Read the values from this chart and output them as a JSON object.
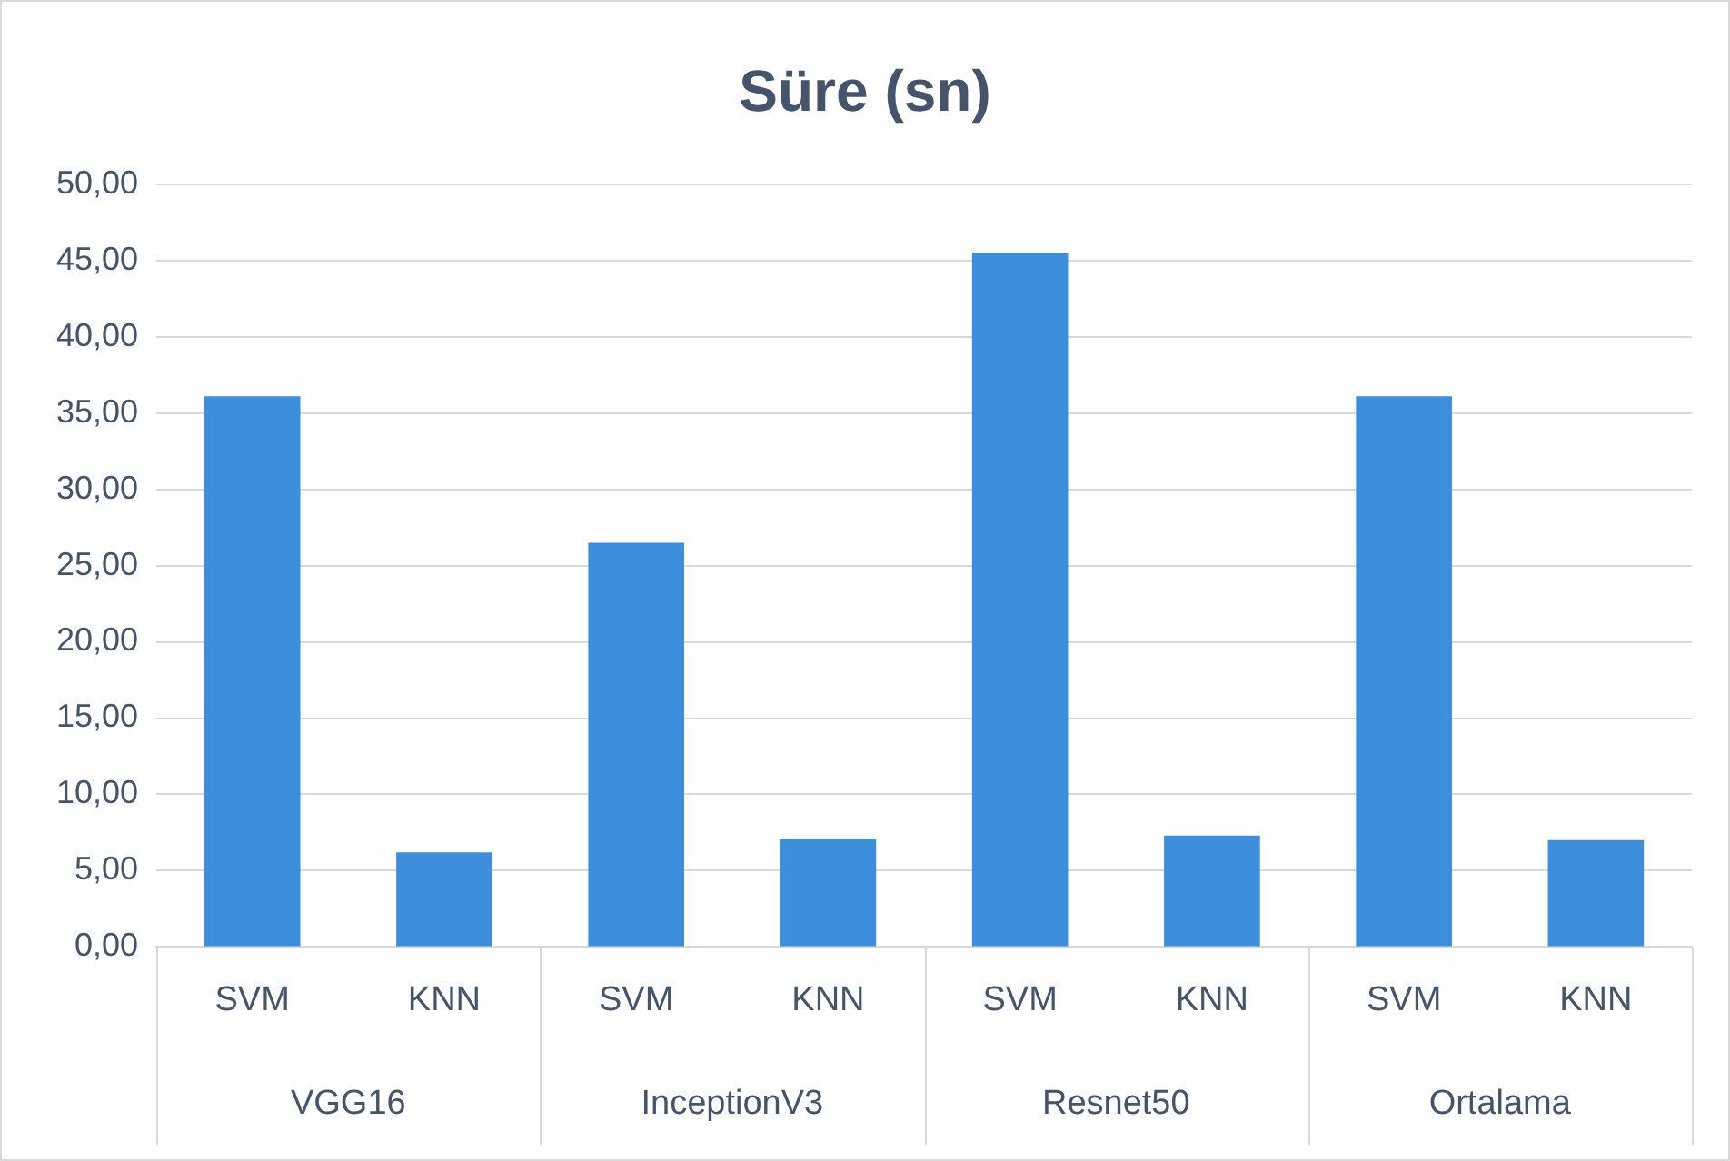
{
  "chart_data": {
    "type": "bar",
    "title": "Süre (sn)",
    "categories": [
      "SVM",
      "KNN",
      "SVM",
      "KNN",
      "SVM",
      "KNN",
      "SVM",
      "KNN"
    ],
    "values": [
      36.1,
      6.2,
      26.5,
      7.1,
      45.5,
      7.3,
      36.1,
      7.0
    ],
    "color": "#3d8fdd",
    "annotations": [
      "VGG16",
      "InceptionV3",
      "Resnet50",
      "Ortalama"
    ],
    "ylim": [
      0,
      50
    ],
    "yticks": [
      {
        "value": 0,
        "label": "0,00"
      },
      {
        "value": 5,
        "label": "5,00"
      },
      {
        "value": 10,
        "label": "10,00"
      },
      {
        "value": 15,
        "label": "15,00"
      },
      {
        "value": 20,
        "label": "20,00"
      },
      {
        "value": 25,
        "label": "25,00"
      },
      {
        "value": 30,
        "label": "30,00"
      },
      {
        "value": 35,
        "label": "35,00"
      },
      {
        "value": 40,
        "label": "40,00"
      },
      {
        "value": 45,
        "label": "45,00"
      },
      {
        "value": 50,
        "label": "50,00"
      }
    ],
    "grid": "y",
    "legend": false
  }
}
